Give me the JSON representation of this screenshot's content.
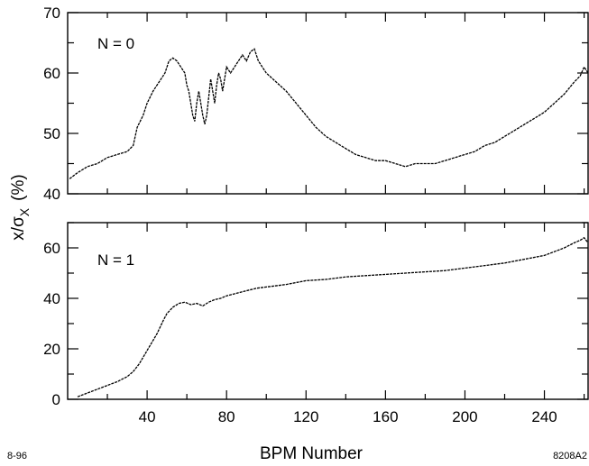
{
  "chart_data": [
    {
      "type": "line",
      "panel_label": "N = 0",
      "xlim": [
        0,
        262
      ],
      "ylim": [
        40,
        70
      ],
      "yticks": [
        40,
        50,
        60,
        70
      ],
      "x_tick_labels_shown": false,
      "series": [
        {
          "x": [
            1,
            5,
            10,
            15,
            20,
            25,
            30,
            33,
            35,
            38,
            40,
            43,
            45,
            47,
            49,
            51,
            53,
            55,
            57,
            59,
            60,
            61,
            62,
            63,
            64,
            65,
            66,
            67,
            68,
            69,
            70,
            71,
            72,
            73,
            74,
            75,
            76,
            77,
            78,
            79,
            80,
            82,
            84,
            86,
            88,
            90,
            92,
            94,
            96,
            98,
            100,
            105,
            110,
            115,
            120,
            125,
            130,
            135,
            140,
            145,
            150,
            155,
            160,
            165,
            170,
            175,
            180,
            185,
            190,
            195,
            200,
            205,
            210,
            215,
            220,
            225,
            230,
            235,
            240,
            245,
            250,
            255,
            258,
            260,
            262
          ],
          "y": [
            42.5,
            43.5,
            44.5,
            45,
            46,
            46.5,
            47,
            48,
            51,
            53,
            55,
            57,
            58,
            59,
            60,
            62,
            62.5,
            62,
            61,
            60,
            58,
            57,
            55,
            53,
            52,
            55,
            57,
            55,
            53,
            51.5,
            53,
            56,
            59,
            57,
            55,
            58,
            60,
            59,
            57,
            59,
            61,
            60,
            61,
            62,
            63,
            62,
            63.5,
            64,
            62,
            61,
            60,
            58.5,
            57,
            55,
            53,
            51,
            49.5,
            48.5,
            47.5,
            46.5,
            46,
            45.5,
            45.5,
            45,
            44.5,
            45,
            45,
            45,
            45.5,
            46,
            46.5,
            47,
            48,
            48.5,
            49.5,
            50.5,
            51.5,
            52.5,
            53.5,
            55,
            56.5,
            58.5,
            59.5,
            61,
            60
          ]
        }
      ]
    },
    {
      "type": "line",
      "panel_label": "N = 1",
      "xlim": [
        0,
        262
      ],
      "ylim": [
        0,
        70
      ],
      "yticks": [
        0,
        20,
        40,
        60
      ],
      "xticks": [
        40,
        80,
        120,
        160,
        200,
        240
      ],
      "xlabel": "BPM Number",
      "series": [
        {
          "x": [
            5,
            10,
            15,
            20,
            25,
            30,
            33,
            36,
            39,
            42,
            45,
            48,
            50,
            53,
            56,
            59,
            62,
            65,
            68,
            71,
            74,
            77,
            80,
            85,
            90,
            95,
            100,
            110,
            120,
            130,
            140,
            150,
            160,
            170,
            180,
            190,
            200,
            210,
            220,
            230,
            240,
            245,
            250,
            255,
            258,
            260,
            262
          ],
          "y": [
            1,
            2.5,
            4,
            5.5,
            7,
            9,
            11,
            14,
            18,
            22,
            26,
            31,
            34,
            36.5,
            38,
            38.5,
            37.5,
            38,
            37,
            38.5,
            39.5,
            40,
            41,
            42,
            43,
            44,
            44.5,
            45.5,
            47,
            47.5,
            48.5,
            49,
            49.5,
            50,
            50.5,
            51,
            52,
            53,
            54,
            55.5,
            57,
            58.5,
            60,
            62,
            63,
            64,
            62
          ]
        }
      ]
    }
  ],
  "shared": {
    "ylabel_main": "x/σ",
    "ylabel_sub": "X",
    "ylabel_unit": "(%)",
    "footer_left": "8-96",
    "footer_right": "8208A2"
  }
}
